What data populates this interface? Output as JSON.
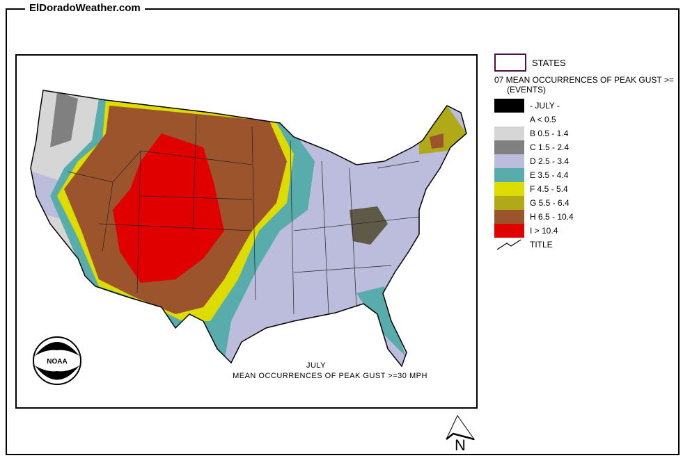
{
  "site_title": "ElDoradoWeather.com",
  "map": {
    "caption_month": "JULY",
    "caption_title": "MEAN OCCURRENCES OF PEAK GUST >=30 MPH",
    "logo_text": "NOAA",
    "north_label": "N"
  },
  "legend": {
    "states_label": "STATES",
    "layer_title": "07 MEAN OCCURRENCES OF PEAK GUST >=",
    "layer_units": "(EVENTS)",
    "month_label": "- JULY -",
    "classes": [
      {
        "label": "A < 0.5",
        "color": "#ffffff"
      },
      {
        "label": "B 0.5 - 1.4",
        "color": "#d6d6d6"
      },
      {
        "label": "C 1.5 - 2.4",
        "color": "#808080"
      },
      {
        "label": "D 2.5 - 3.4",
        "color": "#bcbcdc"
      },
      {
        "label": "E 3.5 - 4.4",
        "color": "#58acac"
      },
      {
        "label": "F 4.5 - 5.4",
        "color": "#dcdc00"
      },
      {
        "label": "G 5.5 - 6.4",
        "color": "#b0aa18"
      },
      {
        "label": "H 6.5 - 10.4",
        "color": "#9c542c"
      },
      {
        "label": "I > 10.4",
        "color": "#e00000"
      }
    ],
    "title_label": "TITLE"
  }
}
